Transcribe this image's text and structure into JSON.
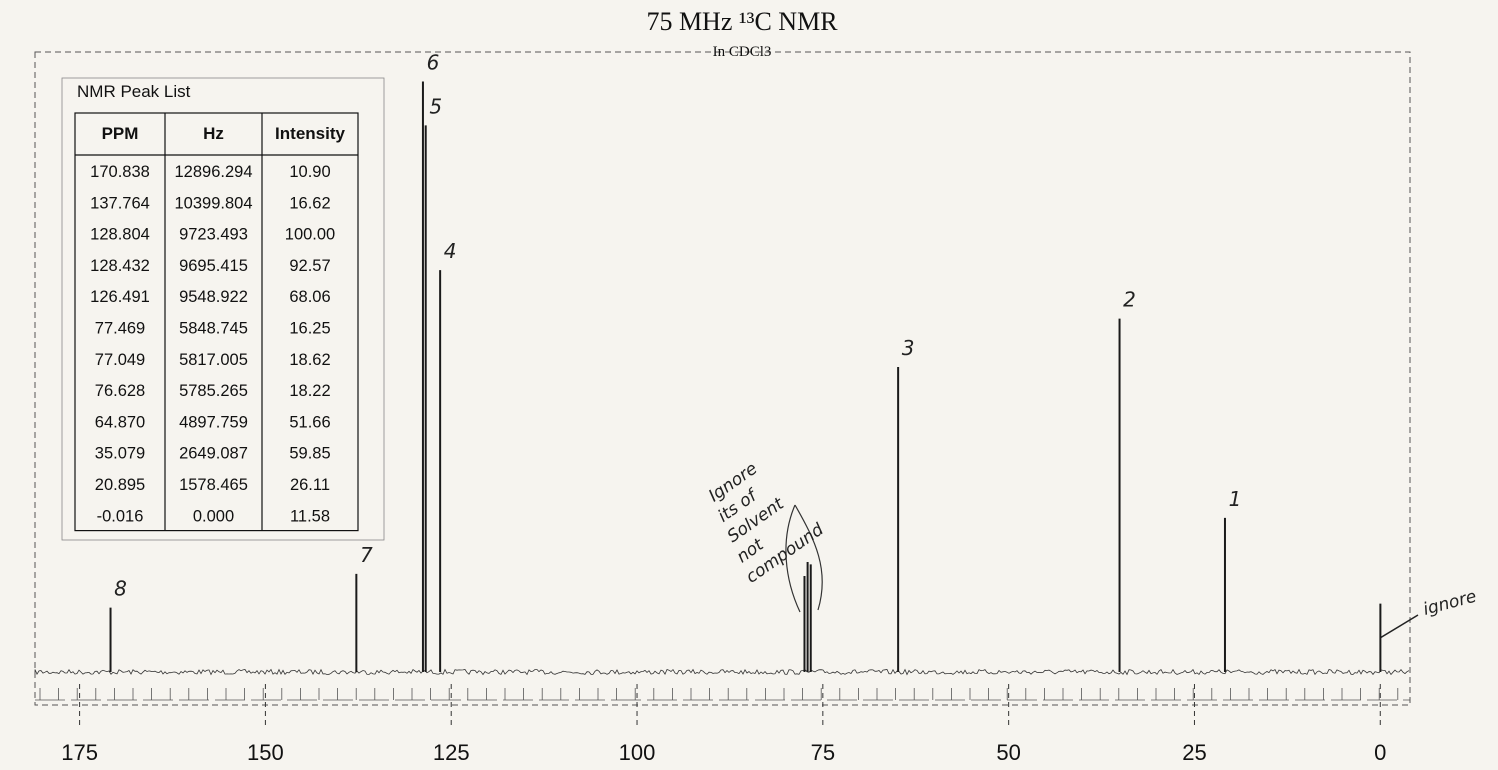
{
  "chart_data": {
    "type": "spectrum",
    "title": "75 MHz ¹³C NMR",
    "subtitle": "In CDCl3",
    "x": [
      170.838,
      137.764,
      128.804,
      128.432,
      126.491,
      77.469,
      77.049,
      76.628,
      64.87,
      35.079,
      20.895,
      -0.016
    ],
    "values": [
      10.9,
      16.62,
      100.0,
      92.57,
      68.06,
      16.25,
      18.62,
      18.22,
      51.66,
      59.85,
      26.11,
      11.58
    ],
    "peak_labels": [
      "8",
      "7",
      "6",
      "5",
      "4",
      null,
      null,
      null,
      "3",
      "2",
      "1",
      null
    ],
    "color": "#1a1a1a",
    "xlim": [
      181,
      -4
    ],
    "xticks": [
      175,
      150,
      125,
      100,
      75,
      50,
      25,
      0
    ],
    "ylim": [
      0,
      105
    ],
    "annotations": [
      {
        "text": [
          "Ignore",
          "its of",
          "Solvent",
          "not",
          "compound"
        ]
      },
      {
        "text": [
          "ignore"
        ]
      }
    ]
  },
  "peak_table": {
    "title": "NMR Peak List",
    "header": [
      "PPM",
      "Hz",
      "Intensity"
    ],
    "rows": [
      [
        "170.838",
        "12896.294",
        "10.90"
      ],
      [
        "137.764",
        "10399.804",
        "16.62"
      ],
      [
        "128.804",
        "9723.493",
        "100.00"
      ],
      [
        "128.432",
        "9695.415",
        "92.57"
      ],
      [
        "126.491",
        "9548.922",
        "68.06"
      ],
      [
        "77.469",
        "5848.745",
        "16.25"
      ],
      [
        "77.049",
        "5817.005",
        "18.62"
      ],
      [
        "76.628",
        "5785.265",
        "18.22"
      ],
      [
        "64.870",
        "4897.759",
        "51.66"
      ],
      [
        "35.079",
        "2649.087",
        "59.85"
      ],
      [
        "20.895",
        "1578.465",
        "26.11"
      ],
      [
        "-0.016",
        "0.000",
        "11.58"
      ]
    ]
  }
}
